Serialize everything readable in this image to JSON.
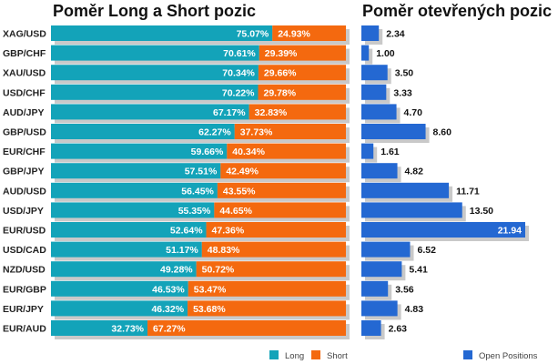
{
  "titles": {
    "left": "Poměr Long a Short pozic",
    "right": "Poměr otevřených pozic"
  },
  "legend": {
    "long": "Long",
    "short": "Short",
    "open": "Open Positions"
  },
  "colors": {
    "long": "#13a3b9",
    "short": "#f4690f",
    "open": "#2468d2",
    "shadow": "#c9c9c9"
  },
  "chart_data": [
    {
      "type": "bar",
      "stacked": true,
      "orientation": "horizontal",
      "title": "Poměr Long a Short pozic",
      "categories": [
        "XAG/USD",
        "GBP/CHF",
        "XAU/USD",
        "USD/CHF",
        "AUD/JPY",
        "GBP/USD",
        "EUR/CHF",
        "GBP/JPY",
        "AUD/USD",
        "USD/JPY",
        "EUR/USD",
        "USD/CAD",
        "NZD/USD",
        "EUR/GBP",
        "EUR/JPY",
        "EUR/AUD"
      ],
      "series": [
        {
          "name": "Long",
          "values": [
            75.07,
            70.61,
            70.34,
            70.22,
            67.17,
            62.27,
            59.66,
            57.51,
            56.45,
            55.35,
            52.64,
            51.17,
            49.28,
            46.53,
            46.32,
            32.73
          ]
        },
        {
          "name": "Short",
          "values": [
            24.93,
            29.39,
            29.66,
            29.78,
            32.83,
            37.73,
            40.34,
            42.49,
            43.55,
            44.65,
            47.36,
            48.83,
            50.72,
            53.47,
            53.68,
            67.27
          ]
        }
      ],
      "value_suffix": "%",
      "xlim": [
        0,
        100
      ],
      "legend_position": "bottom"
    },
    {
      "type": "bar",
      "orientation": "horizontal",
      "title": "Poměr otevřených pozic",
      "categories": [
        "XAG/USD",
        "GBP/CHF",
        "XAU/USD",
        "USD/CHF",
        "AUD/JPY",
        "GBP/USD",
        "EUR/CHF",
        "GBP/JPY",
        "AUD/USD",
        "USD/JPY",
        "EUR/USD",
        "USD/CAD",
        "NZD/USD",
        "EUR/GBP",
        "EUR/JPY",
        "EUR/AUD"
      ],
      "series": [
        {
          "name": "Open Positions",
          "values": [
            2.34,
            1.0,
            3.5,
            3.33,
            4.7,
            8.6,
            1.61,
            4.82,
            11.71,
            13.5,
            21.94,
            6.52,
            5.41,
            3.56,
            4.83,
            2.63
          ]
        }
      ],
      "xlim": [
        0,
        21.94
      ],
      "legend_position": "bottom"
    }
  ]
}
